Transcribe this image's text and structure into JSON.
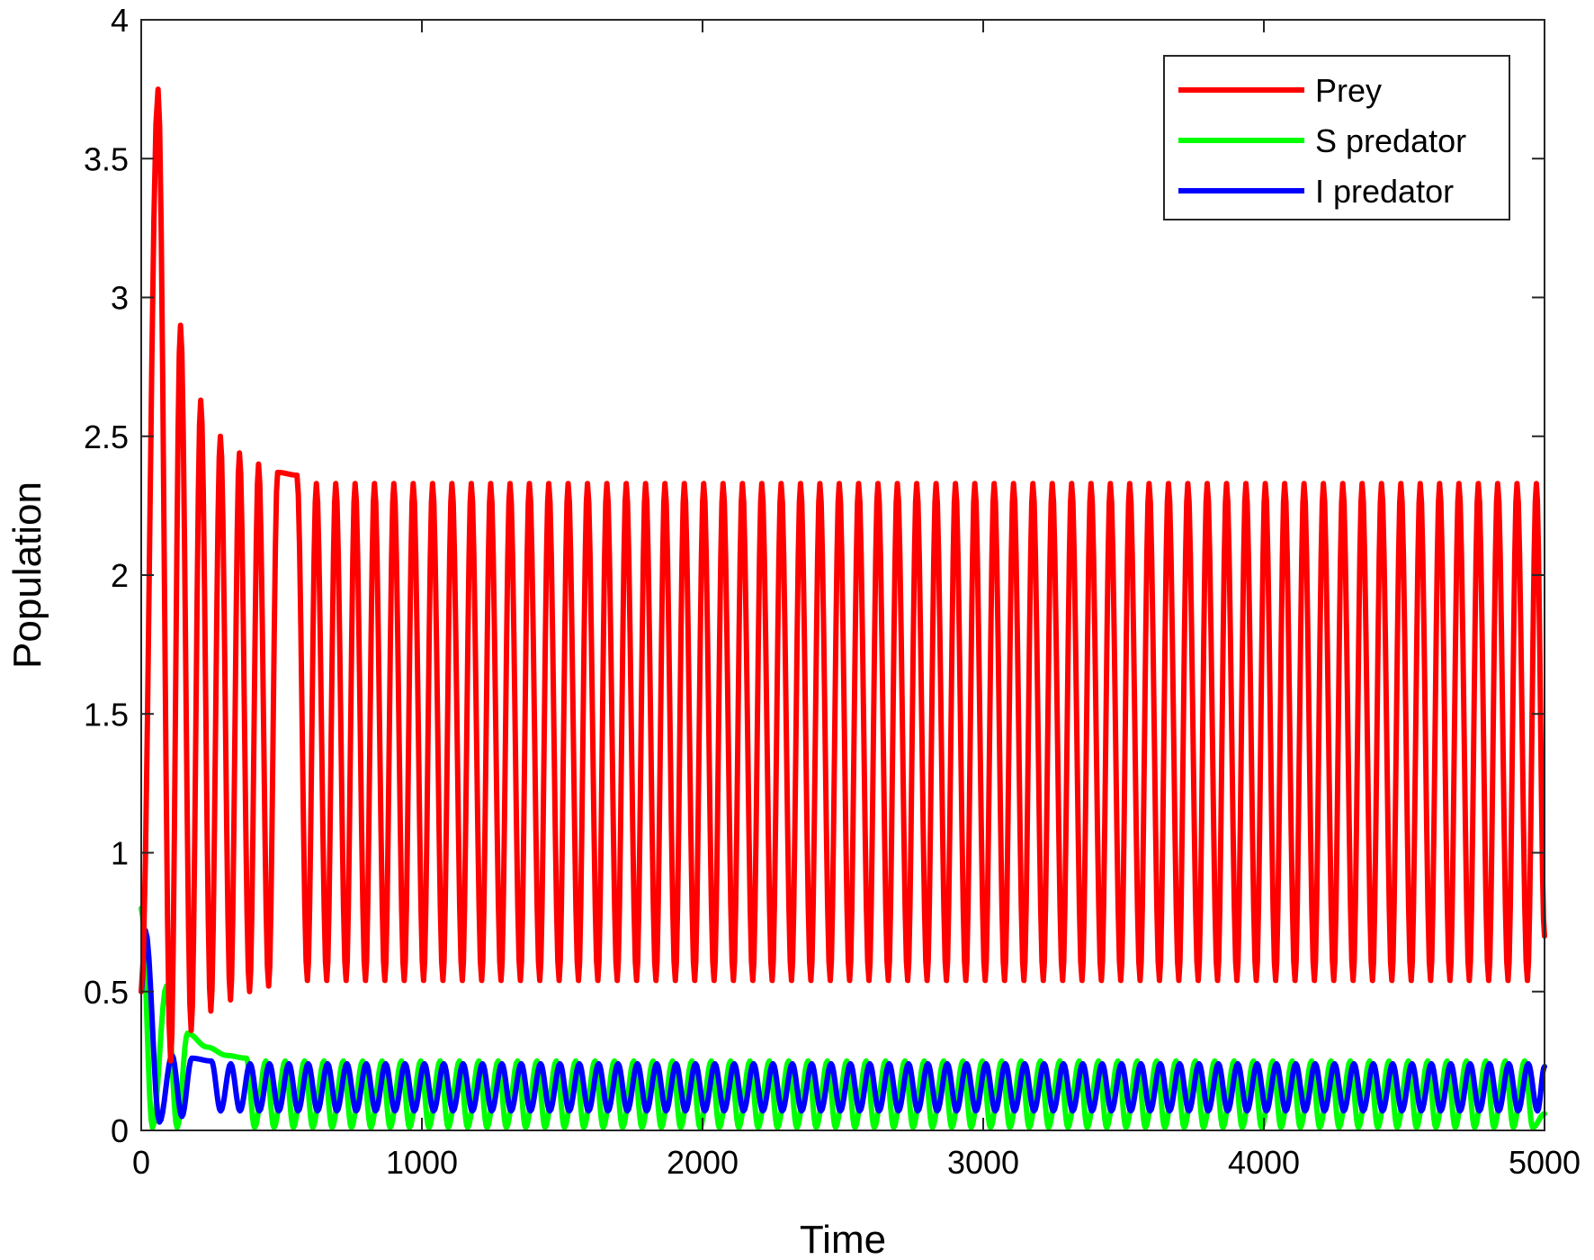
{
  "chart_data": {
    "type": "line",
    "title": "",
    "xlabel": "Time",
    "ylabel": "Population",
    "xlim": [
      0,
      5000
    ],
    "ylim": [
      0,
      4
    ],
    "xticks": [
      0,
      1000,
      2000,
      3000,
      4000,
      5000
    ],
    "xtick_labels": [
      "0",
      "1000",
      "2000",
      "3000",
      "4000",
      "5000"
    ],
    "yticks": [
      0,
      0.5,
      1,
      1.5,
      2,
      2.5,
      3,
      3.5,
      4
    ],
    "ytick_labels": [
      "0",
      "0.5",
      "1",
      "1.5",
      "2",
      "2.5",
      "3",
      "3.5",
      "4"
    ],
    "grid": false,
    "legend_position": "top-right",
    "oscillation_period": 69,
    "series": [
      {
        "name": "Prey",
        "color": "#ff0000",
        "initial": 0.5,
        "first_peaks": [
          {
            "x": 60,
            "y": 3.75
          },
          {
            "x": 140,
            "y": 2.9
          },
          {
            "x": 212,
            "y": 2.63
          },
          {
            "x": 282,
            "y": 2.5
          },
          {
            "x": 350,
            "y": 2.44
          },
          {
            "x": 418,
            "y": 2.4
          },
          {
            "x": 486,
            "y": 2.37
          },
          {
            "x": 555,
            "y": 2.36
          }
        ],
        "first_troughs": [
          {
            "x": 105,
            "y": 0.25
          },
          {
            "x": 178,
            "y": 0.36
          },
          {
            "x": 248,
            "y": 0.43
          },
          {
            "x": 318,
            "y": 0.47
          },
          {
            "x": 386,
            "y": 0.5
          },
          {
            "x": 454,
            "y": 0.52
          }
        ],
        "steady_max": 2.33,
        "steady_min": 0.54,
        "end_value": 0.7
      },
      {
        "name": "S predator",
        "color": "#00ff00",
        "initial": 0.8,
        "first_peaks": [
          {
            "x": 90,
            "y": 0.52
          },
          {
            "x": 165,
            "y": 0.35
          },
          {
            "x": 235,
            "y": 0.3
          },
          {
            "x": 305,
            "y": 0.27
          },
          {
            "x": 375,
            "y": 0.26
          }
        ],
        "first_troughs": [
          {
            "x": 40,
            "y": 0.01
          },
          {
            "x": 128,
            "y": 0.01
          }
        ],
        "steady_max": 0.25,
        "steady_min": 0.01,
        "end_value": 0.06
      },
      {
        "name": "I predator",
        "color": "#0000ff",
        "initial": 0.5,
        "first_peaks": [
          {
            "x": 15,
            "y": 0.72
          },
          {
            "x": 110,
            "y": 0.27
          },
          {
            "x": 180,
            "y": 0.26
          },
          {
            "x": 250,
            "y": 0.25
          }
        ],
        "first_troughs": [
          {
            "x": 65,
            "y": 0.03
          },
          {
            "x": 145,
            "y": 0.05
          }
        ],
        "steady_max": 0.24,
        "steady_min": 0.07,
        "end_value": 0.23
      }
    ]
  }
}
